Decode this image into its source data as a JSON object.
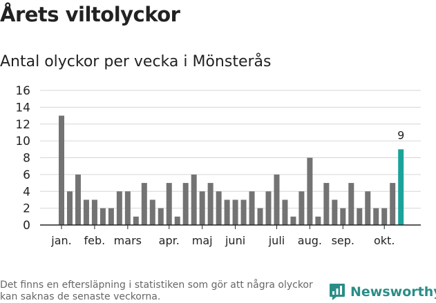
{
  "header": {
    "title": "Årets viltolyckor",
    "subtitle": "Antal olyckor per vecka i Mönsterås"
  },
  "footer": {
    "note": "Det finns en eftersläpning i statistiken som gör att några olyckor kan saknas de senaste veckorna.",
    "brand": "Newsworthy"
  },
  "colors": {
    "bar": "#737373",
    "highlight": "#1aa39a",
    "grid": "#d6d6d6",
    "axis": "#222222",
    "brand": "#2a8d87"
  },
  "chart_data": {
    "type": "bar",
    "title": "",
    "xlabel": "",
    "ylabel": "",
    "ylim": [
      0,
      16
    ],
    "y_ticks": [
      0,
      2,
      4,
      6,
      8,
      10,
      12,
      14,
      16
    ],
    "grid": true,
    "x": [
      "v1",
      "v2",
      "v3",
      "v4",
      "v5",
      "v6",
      "v7",
      "v8",
      "v9",
      "v10",
      "v11",
      "v12",
      "v13",
      "v14",
      "v15",
      "v16",
      "v17",
      "v18",
      "v19",
      "v20",
      "v21",
      "v22",
      "v23",
      "v24",
      "v25",
      "v26",
      "v27",
      "v28",
      "v29",
      "v30",
      "v31",
      "v32",
      "v33",
      "v34",
      "v35",
      "v36",
      "v37",
      "v38",
      "v39",
      "v40",
      "v41"
    ],
    "values": [
      13,
      4,
      6,
      3,
      3,
      2,
      2,
      4,
      4,
      1,
      5,
      3,
      2,
      5,
      1,
      5,
      6,
      4,
      5,
      4,
      3,
      3,
      3,
      4,
      2,
      4,
      6,
      3,
      1,
      4,
      8,
      1,
      5,
      3,
      2,
      5,
      2,
      4,
      2,
      2,
      5
    ],
    "highlight": {
      "x": "v42",
      "value": 9,
      "label": "9"
    },
    "x_tick_labels": [
      {
        "label": "jan.",
        "at": 1
      },
      {
        "label": "feb.",
        "at": 5
      },
      {
        "label": "mars",
        "at": 9
      },
      {
        "label": "apr.",
        "at": 14
      },
      {
        "label": "maj",
        "at": 18
      },
      {
        "label": "juni",
        "at": 22
      },
      {
        "label": "juli",
        "at": 27
      },
      {
        "label": "aug.",
        "at": 31
      },
      {
        "label": "sep.",
        "at": 35
      },
      {
        "label": "okt.",
        "at": 40
      }
    ]
  }
}
